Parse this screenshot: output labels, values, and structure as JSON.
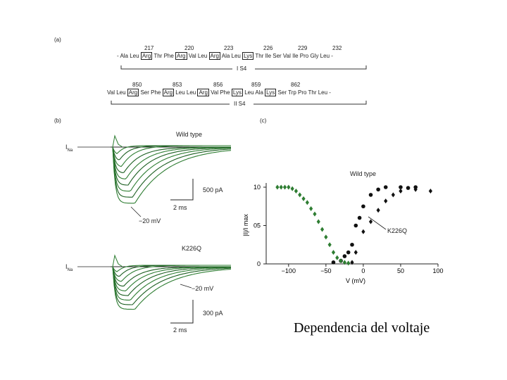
{
  "panel_a": {
    "label": "(a)",
    "seg1": {
      "nums": [
        "217",
        "220",
        "223",
        "226",
        "229",
        "232"
      ],
      "left": "- Ala Leu",
      "r1": "Arg",
      "m1": "Thr Phe",
      "r2": "Arg",
      "m2": "Val Leu",
      "r3": "Arg",
      "m3": "Ala Leu",
      "r4": "Lys",
      "tail": "Thr Ile Ser Val Ile Pro Gly Leu -",
      "segment": "I S4"
    },
    "seg2": {
      "nums": [
        "850",
        "853",
        "856",
        "859",
        "862"
      ],
      "left": "Val Leu",
      "r1": "Arg",
      "m1": "Ser Phe",
      "r2": "Arg",
      "m2": "Leu Leu",
      "r3": "Arg",
      "m3": "Val Phe",
      "r4": "Lys",
      "m4": "Leu Ala",
      "r5": "Lys",
      "tail": "Ser Trp Pro Thr Leu -",
      "segment": "II S4"
    }
  },
  "panel_b": {
    "label": "(b)",
    "top": {
      "title": "Wild type",
      "current": "I",
      "current_sub": "Na",
      "scale_current": "500 pA",
      "scale_time": "2 ms",
      "voltage_label": "−20 mV"
    },
    "bottom": {
      "title": "K226Q",
      "current": "I",
      "current_sub": "Na",
      "scale_current": "300 pA",
      "scale_time": "2 ms",
      "voltage_label": "−20 mV"
    }
  },
  "panel_c": {
    "label": "(c)",
    "chart_data": {
      "type": "scatter",
      "xlabel": "V (mV)",
      "ylabel": "|I|/I max",
      "xticks": [
        "−100",
        "−50",
        "0",
        "50",
        "100"
      ],
      "yticks": [
        "0",
        "05",
        "10"
      ],
      "xlim": [
        -130,
        100
      ],
      "ylim": [
        0,
        1.05
      ],
      "series": [
        {
          "name": "Wild type",
          "marker": "circle",
          "points": [
            [
              -40,
              0.02
            ],
            [
              -30,
              0.04
            ],
            [
              -25,
              0.1
            ],
            [
              -20,
              0.15
            ],
            [
              -15,
              0.25
            ],
            [
              -10,
              0.5
            ],
            [
              -5,
              0.6
            ],
            [
              0,
              0.75
            ],
            [
              10,
              0.9
            ],
            [
              20,
              0.97
            ],
            [
              30,
              1.0
            ],
            [
              50,
              1.0
            ],
            [
              60,
              0.99
            ],
            [
              70,
              1.0
            ]
          ]
        },
        {
          "name": "K226Q",
          "marker": "diamond",
          "points": [
            [
              -115,
              1.0
            ],
            [
              -110,
              1.0
            ],
            [
              -105,
              1.0
            ],
            [
              -100,
              1.0
            ],
            [
              -95,
              0.98
            ],
            [
              -90,
              0.95
            ],
            [
              -85,
              0.9
            ],
            [
              -80,
              0.85
            ],
            [
              -75,
              0.8
            ],
            [
              -70,
              0.72
            ],
            [
              -65,
              0.65
            ],
            [
              -60,
              0.55
            ],
            [
              -55,
              0.45
            ],
            [
              -50,
              0.35
            ],
            [
              -45,
              0.25
            ],
            [
              -40,
              0.15
            ],
            [
              -35,
              0.08
            ],
            [
              -30,
              0.04
            ],
            [
              -25,
              0.02
            ],
            [
              -20,
              0.01
            ],
            [
              -15,
              0.02
            ],
            [
              -10,
              0.15
            ],
            [
              0,
              0.42
            ],
            [
              10,
              0.55
            ],
            [
              20,
              0.7
            ],
            [
              30,
              0.82
            ],
            [
              40,
              0.9
            ],
            [
              50,
              0.95
            ],
            [
              70,
              0.97
            ],
            [
              90,
              0.95
            ]
          ]
        }
      ]
    },
    "legend_wild": "Wild type",
    "legend_k226q": "K226Q"
  },
  "caption": "Dependencia del voltaje"
}
